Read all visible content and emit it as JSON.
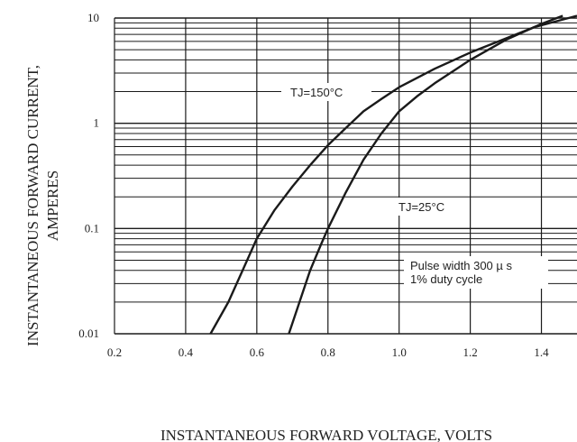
{
  "chart_data": {
    "type": "line",
    "ylabel_line1": "INSTANTANEOUS FORWARD CURRENT,",
    "ylabel_line2": "AMPERES",
    "xlabel": "INSTANTANEOUS FORWARD VOLTAGE, VOLTS",
    "x_ticks": [
      "0.2",
      "0.4",
      "0.6",
      "0.8",
      "1.0",
      "1.2",
      "1.4"
    ],
    "y_ticks": [
      "10",
      "1",
      "0.1",
      "0.01"
    ],
    "xlim": [
      0.2,
      1.5
    ],
    "ylim": [
      0.01,
      10
    ],
    "y_scale": "log",
    "grid": true,
    "note_line1": "Pulse width 300 µ s",
    "note_line2": "1% duty cycle",
    "colors": {
      "line": "#1a1a1a",
      "grid": "#1a1a1a",
      "text": "#222222"
    },
    "series": [
      {
        "name": "TJ=150°C",
        "points": [
          [
            0.47,
            0.01
          ],
          [
            0.52,
            0.02
          ],
          [
            0.56,
            0.04
          ],
          [
            0.6,
            0.08
          ],
          [
            0.65,
            0.15
          ],
          [
            0.7,
            0.25
          ],
          [
            0.75,
            0.4
          ],
          [
            0.8,
            0.62
          ],
          [
            0.85,
            0.9
          ],
          [
            0.9,
            1.3
          ],
          [
            0.95,
            1.7
          ],
          [
            1.0,
            2.2
          ],
          [
            1.1,
            3.3
          ],
          [
            1.2,
            4.7
          ],
          [
            1.3,
            6.4
          ],
          [
            1.38,
            8.2
          ],
          [
            1.5,
            10.5
          ]
        ]
      },
      {
        "name": "TJ=25°C",
        "points": [
          [
            0.69,
            0.01
          ],
          [
            0.72,
            0.02
          ],
          [
            0.75,
            0.04
          ],
          [
            0.78,
            0.07
          ],
          [
            0.8,
            0.1
          ],
          [
            0.85,
            0.22
          ],
          [
            0.9,
            0.45
          ],
          [
            0.95,
            0.8
          ],
          [
            1.0,
            1.3
          ],
          [
            1.05,
            1.8
          ],
          [
            1.1,
            2.4
          ],
          [
            1.2,
            4.0
          ],
          [
            1.3,
            6.2
          ],
          [
            1.4,
            8.8
          ],
          [
            1.46,
            10.5
          ]
        ]
      }
    ]
  }
}
